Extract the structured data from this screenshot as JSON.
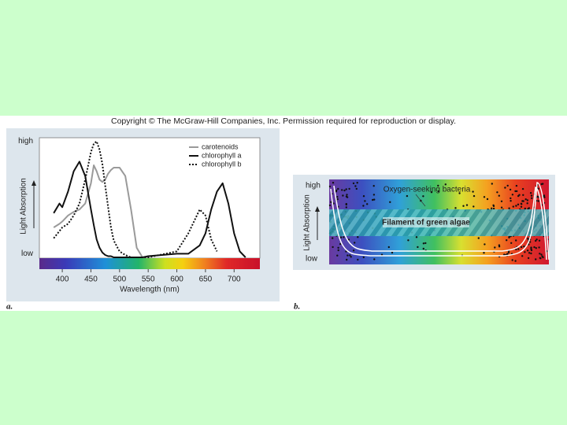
{
  "copyright": "Copyright © The McGraw-Hill Companies, Inc. Permission required for reproduction or display.",
  "chart_data": {
    "type": "line",
    "label": "a.",
    "xlabel": "Wavelength (nm)",
    "ylabel": "Light Absorption",
    "xlim": [
      360,
      745
    ],
    "xticks": [
      400,
      450,
      500,
      550,
      600,
      650,
      700
    ],
    "ylim": [
      0,
      1
    ],
    "yticks": [
      {
        "value": 0.97,
        "label": "high"
      },
      {
        "value": 0.03,
        "label": "low"
      }
    ],
    "legend": "upper right",
    "x": [
      385,
      395,
      400,
      410,
      420,
      430,
      440,
      450,
      455,
      460,
      465,
      470,
      475,
      480,
      485,
      490,
      500,
      510,
      520,
      530,
      540,
      550,
      600,
      620,
      640,
      650,
      660,
      670,
      680,
      690,
      700,
      710,
      720
    ],
    "series": [
      {
        "name": "carotenoids",
        "color": "#9a9a9a",
        "linestyle": "solid",
        "values": [
          0.25,
          0.28,
          0.3,
          0.35,
          0.38,
          0.4,
          0.45,
          0.62,
          0.77,
          0.72,
          0.65,
          0.63,
          0.65,
          0.7,
          0.73,
          0.75,
          0.75,
          0.68,
          0.4,
          0.08,
          0,
          null,
          null,
          null,
          null,
          null,
          null,
          null,
          null,
          null,
          null,
          null,
          null
        ]
      },
      {
        "name": "chlorophyll a",
        "color": "#111111",
        "linestyle": "solid",
        "values": [
          0.37,
          0.45,
          0.42,
          0.55,
          0.72,
          0.8,
          0.68,
          0.4,
          0.27,
          0.15,
          0.08,
          0.04,
          0.02,
          0.01,
          0.01,
          0,
          0,
          0,
          0,
          0,
          0,
          0.01,
          0.03,
          0.03,
          0.1,
          0.2,
          0.4,
          0.55,
          0.62,
          0.45,
          0.2,
          0.05,
          0
        ]
      },
      {
        "name": "chlorophyll b",
        "color": "#111111",
        "linestyle": "dotted",
        "values": [
          0.16,
          0.22,
          0.25,
          0.28,
          0.35,
          0.45,
          0.65,
          0.88,
          0.95,
          0.97,
          0.9,
          0.78,
          0.6,
          0.42,
          0.25,
          0.14,
          0.05,
          0.02,
          0,
          0,
          0,
          0,
          0.05,
          0.2,
          0.4,
          0.35,
          0.15,
          0.05,
          null,
          null,
          null,
          null,
          null
        ]
      }
    ]
  },
  "panel_b": {
    "label": "b.",
    "high": "high",
    "low": "low",
    "ylabel": "Light Absorption",
    "bacteria": "Oxygen-seeking bacteria",
    "filament": "Filament of green algae"
  }
}
